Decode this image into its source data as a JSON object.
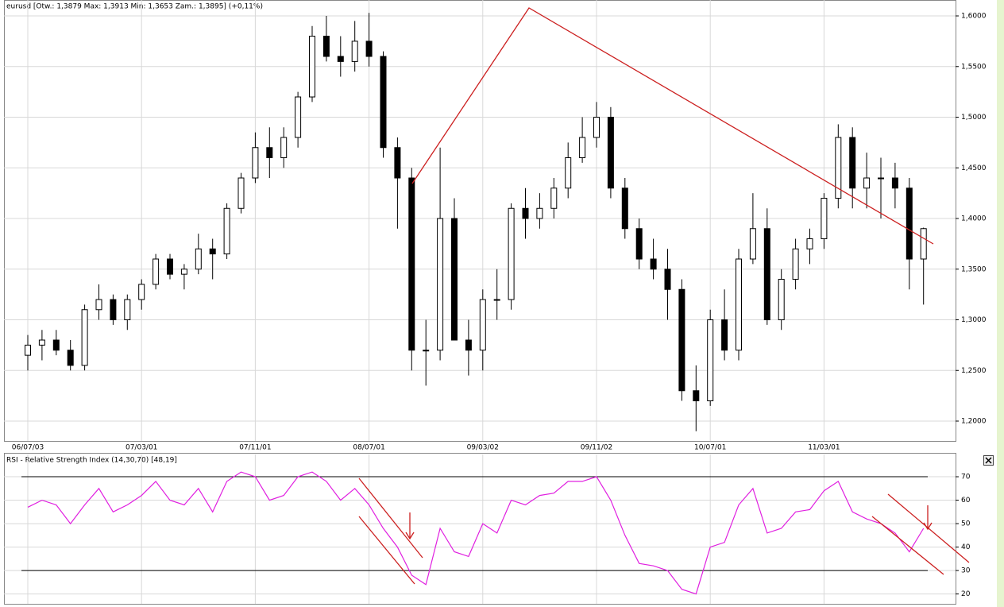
{
  "chart_data": [
    {
      "type": "candlestick",
      "title": "eurusd [Otw.: 1,3879  Max: 1,3913  Min: 1,3653  Zam.: 1,3895] (+0,11%)",
      "categories": [
        "06/07/03",
        null,
        null,
        null,
        null,
        null,
        null,
        null,
        "07/03/01",
        null,
        null,
        null,
        null,
        null,
        null,
        null,
        "07/11/01",
        null,
        null,
        null,
        null,
        null,
        null,
        null,
        "08/07/01",
        null,
        null,
        null,
        null,
        null,
        null,
        null,
        "09/03/02",
        null,
        null,
        null,
        null,
        null,
        null,
        null,
        "09/11/02",
        null,
        null,
        null,
        null,
        null,
        null,
        null,
        "10/07/01",
        null,
        null,
        null,
        null,
        null,
        null,
        null,
        "11/03/01",
        null,
        null,
        null,
        null,
        null,
        null,
        null
      ],
      "ohlc": [
        [
          1.265,
          1.285,
          1.25,
          1.275
        ],
        [
          1.275,
          1.29,
          1.26,
          1.28
        ],
        [
          1.28,
          1.29,
          1.265,
          1.27
        ],
        [
          1.27,
          1.28,
          1.25,
          1.255
        ],
        [
          1.255,
          1.315,
          1.25,
          1.31
        ],
        [
          1.31,
          1.335,
          1.3,
          1.32
        ],
        [
          1.32,
          1.325,
          1.295,
          1.3
        ],
        [
          1.3,
          1.325,
          1.29,
          1.32
        ],
        [
          1.32,
          1.34,
          1.31,
          1.335
        ],
        [
          1.335,
          1.365,
          1.33,
          1.36
        ],
        [
          1.36,
          1.365,
          1.34,
          1.345
        ],
        [
          1.345,
          1.355,
          1.33,
          1.35
        ],
        [
          1.35,
          1.385,
          1.345,
          1.37
        ],
        [
          1.37,
          1.38,
          1.34,
          1.365
        ],
        [
          1.365,
          1.415,
          1.36,
          1.41
        ],
        [
          1.41,
          1.445,
          1.405,
          1.44
        ],
        [
          1.44,
          1.485,
          1.435,
          1.47
        ],
        [
          1.47,
          1.49,
          1.44,
          1.46
        ],
        [
          1.46,
          1.49,
          1.45,
          1.48
        ],
        [
          1.48,
          1.525,
          1.47,
          1.52
        ],
        [
          1.52,
          1.59,
          1.515,
          1.58
        ],
        [
          1.58,
          1.6,
          1.555,
          1.56
        ],
        [
          1.56,
          1.58,
          1.54,
          1.555
        ],
        [
          1.555,
          1.595,
          1.545,
          1.575
        ],
        [
          1.575,
          1.603,
          1.55,
          1.56
        ],
        [
          1.56,
          1.565,
          1.46,
          1.47
        ],
        [
          1.47,
          1.48,
          1.39,
          1.44
        ],
        [
          1.44,
          1.45,
          1.25,
          1.27
        ],
        [
          1.27,
          1.3,
          1.235,
          1.27
        ],
        [
          1.27,
          1.47,
          1.26,
          1.4
        ],
        [
          1.4,
          1.42,
          1.28,
          1.28
        ],
        [
          1.28,
          1.3,
          1.245,
          1.27
        ],
        [
          1.27,
          1.33,
          1.25,
          1.32
        ],
        [
          1.32,
          1.35,
          1.3,
          1.32
        ],
        [
          1.32,
          1.415,
          1.31,
          1.41
        ],
        [
          1.41,
          1.43,
          1.38,
          1.4
        ],
        [
          1.4,
          1.425,
          1.39,
          1.41
        ],
        [
          1.41,
          1.44,
          1.4,
          1.43
        ],
        [
          1.43,
          1.475,
          1.42,
          1.46
        ],
        [
          1.46,
          1.5,
          1.455,
          1.48
        ],
        [
          1.48,
          1.515,
          1.47,
          1.5
        ],
        [
          1.5,
          1.51,
          1.42,
          1.43
        ],
        [
          1.43,
          1.44,
          1.38,
          1.39
        ],
        [
          1.39,
          1.4,
          1.35,
          1.36
        ],
        [
          1.36,
          1.38,
          1.34,
          1.35
        ],
        [
          1.35,
          1.37,
          1.3,
          1.33
        ],
        [
          1.33,
          1.34,
          1.22,
          1.23
        ],
        [
          1.23,
          1.255,
          1.19,
          1.22
        ],
        [
          1.22,
          1.31,
          1.215,
          1.3
        ],
        [
          1.3,
          1.33,
          1.26,
          1.27
        ],
        [
          1.27,
          1.37,
          1.26,
          1.36
        ],
        [
          1.36,
          1.425,
          1.355,
          1.39
        ],
        [
          1.39,
          1.41,
          1.295,
          1.3
        ],
        [
          1.3,
          1.35,
          1.29,
          1.34
        ],
        [
          1.34,
          1.38,
          1.33,
          1.37
        ],
        [
          1.37,
          1.39,
          1.355,
          1.38
        ],
        [
          1.38,
          1.425,
          1.37,
          1.42
        ],
        [
          1.42,
          1.493,
          1.41,
          1.48
        ],
        [
          1.48,
          1.49,
          1.41,
          1.43
        ],
        [
          1.43,
          1.465,
          1.41,
          1.44
        ],
        [
          1.44,
          1.46,
          1.4,
          1.44
        ],
        [
          1.44,
          1.455,
          1.41,
          1.43
        ],
        [
          1.43,
          1.44,
          1.33,
          1.36
        ],
        [
          1.36,
          1.391,
          1.315,
          1.39
        ]
      ],
      "ylim": [
        1.1804,
        1.6157
      ],
      "yticks": [
        {
          "value": 1.2,
          "label": "1,2000"
        },
        {
          "value": 1.25,
          "label": "1,2500"
        },
        {
          "value": 1.3,
          "label": "1,3000"
        },
        {
          "value": 1.35,
          "label": "1,3500"
        },
        {
          "value": 1.4,
          "label": "1,4000"
        },
        {
          "value": 1.45,
          "label": "1,4500"
        },
        {
          "value": 1.5,
          "label": "1,5000"
        },
        {
          "value": 1.55,
          "label": "1,5500"
        },
        {
          "value": 1.6,
          "label": "1,6000"
        }
      ],
      "up_color": "#ffffff",
      "down_color": "#000000",
      "wick_color": "#000000",
      "grid": true
    },
    {
      "type": "line",
      "title": "RSI - Relative Strength Index (14,30,70) [48,19]",
      "values": [
        57,
        60,
        58,
        50,
        58,
        65,
        55,
        58,
        62,
        68,
        60,
        58,
        65,
        55,
        68,
        72,
        70,
        60,
        62,
        70,
        72,
        68,
        60,
        65,
        58,
        48,
        40,
        28,
        24,
        48,
        38,
        36,
        50,
        46,
        60,
        58,
        62,
        63,
        68,
        68,
        70,
        60,
        45,
        33,
        32,
        30,
        22,
        20,
        40,
        42,
        58,
        65,
        46,
        48,
        55,
        56,
        64,
        68,
        55,
        52,
        50,
        46,
        38,
        48
      ],
      "color": "#e020e0",
      "levels": [
        30,
        70
      ],
      "ylim": [
        15.8,
        79.5
      ],
      "yticks": [
        20,
        30,
        40,
        50,
        60,
        70
      ],
      "grid": true
    }
  ]
}
